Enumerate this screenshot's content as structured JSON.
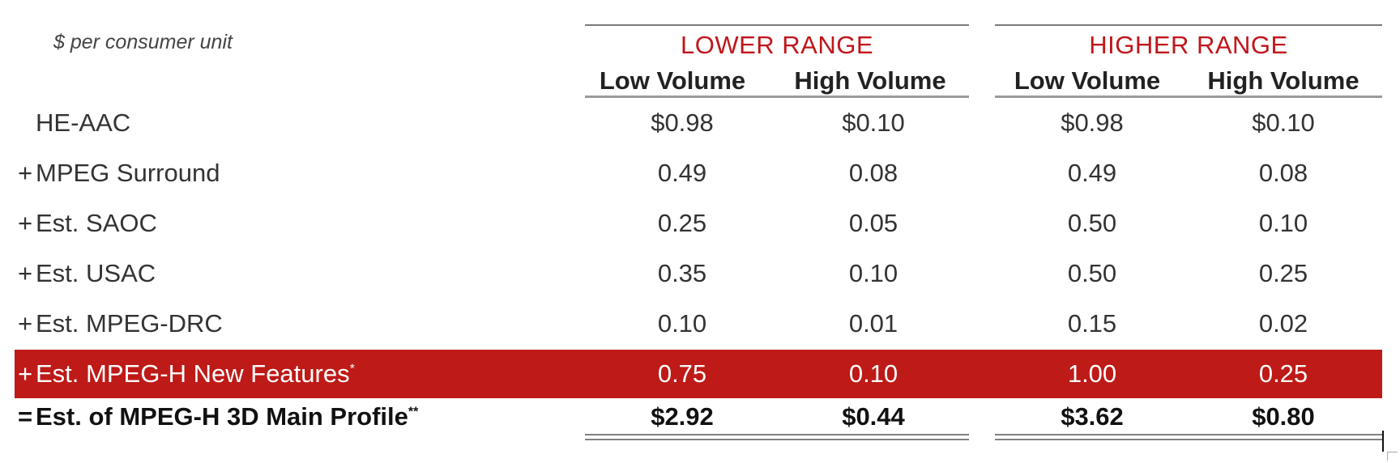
{
  "table": {
    "unit_label": "$ per consumer unit",
    "groups": [
      {
        "title": "LOWER RANGE",
        "columns": [
          "Low Volume",
          "High Volume"
        ]
      },
      {
        "title": "HIGHER RANGE",
        "columns": [
          "Low Volume",
          "High Volume"
        ]
      }
    ],
    "rows": [
      {
        "op": "",
        "label": "HE-AAC",
        "values": [
          "$0.98",
          "$0.10",
          "$0.98",
          "$0.10"
        ]
      },
      {
        "op": "+",
        "label": "MPEG Surround",
        "values": [
          "0.49",
          "0.08",
          "0.49",
          "0.08"
        ]
      },
      {
        "op": "+",
        "label": "Est. SAOC",
        "values": [
          "0.25",
          "0.05",
          "0.50",
          "0.10"
        ]
      },
      {
        "op": "+",
        "label": "Est. USAC",
        "values": [
          "0.35",
          "0.10",
          "0.50",
          "0.25"
        ]
      },
      {
        "op": "+",
        "label": "Est. MPEG-DRC",
        "values": [
          "0.10",
          "0.01",
          "0.15",
          "0.02"
        ]
      },
      {
        "op": "+",
        "label": "Est. MPEG-H New Features",
        "sup": "*",
        "values": [
          "0.75",
          "0.10",
          "1.00",
          "0.25"
        ]
      },
      {
        "op": "=",
        "label": "Est. of MPEG-H 3D Main Profile",
        "sup": "**",
        "values": [
          "$2.92",
          "$0.44",
          "$3.62",
          "$0.80"
        ]
      }
    ],
    "colors": {
      "accent": "#c0161b",
      "highlight_row": "#be1a17"
    }
  }
}
